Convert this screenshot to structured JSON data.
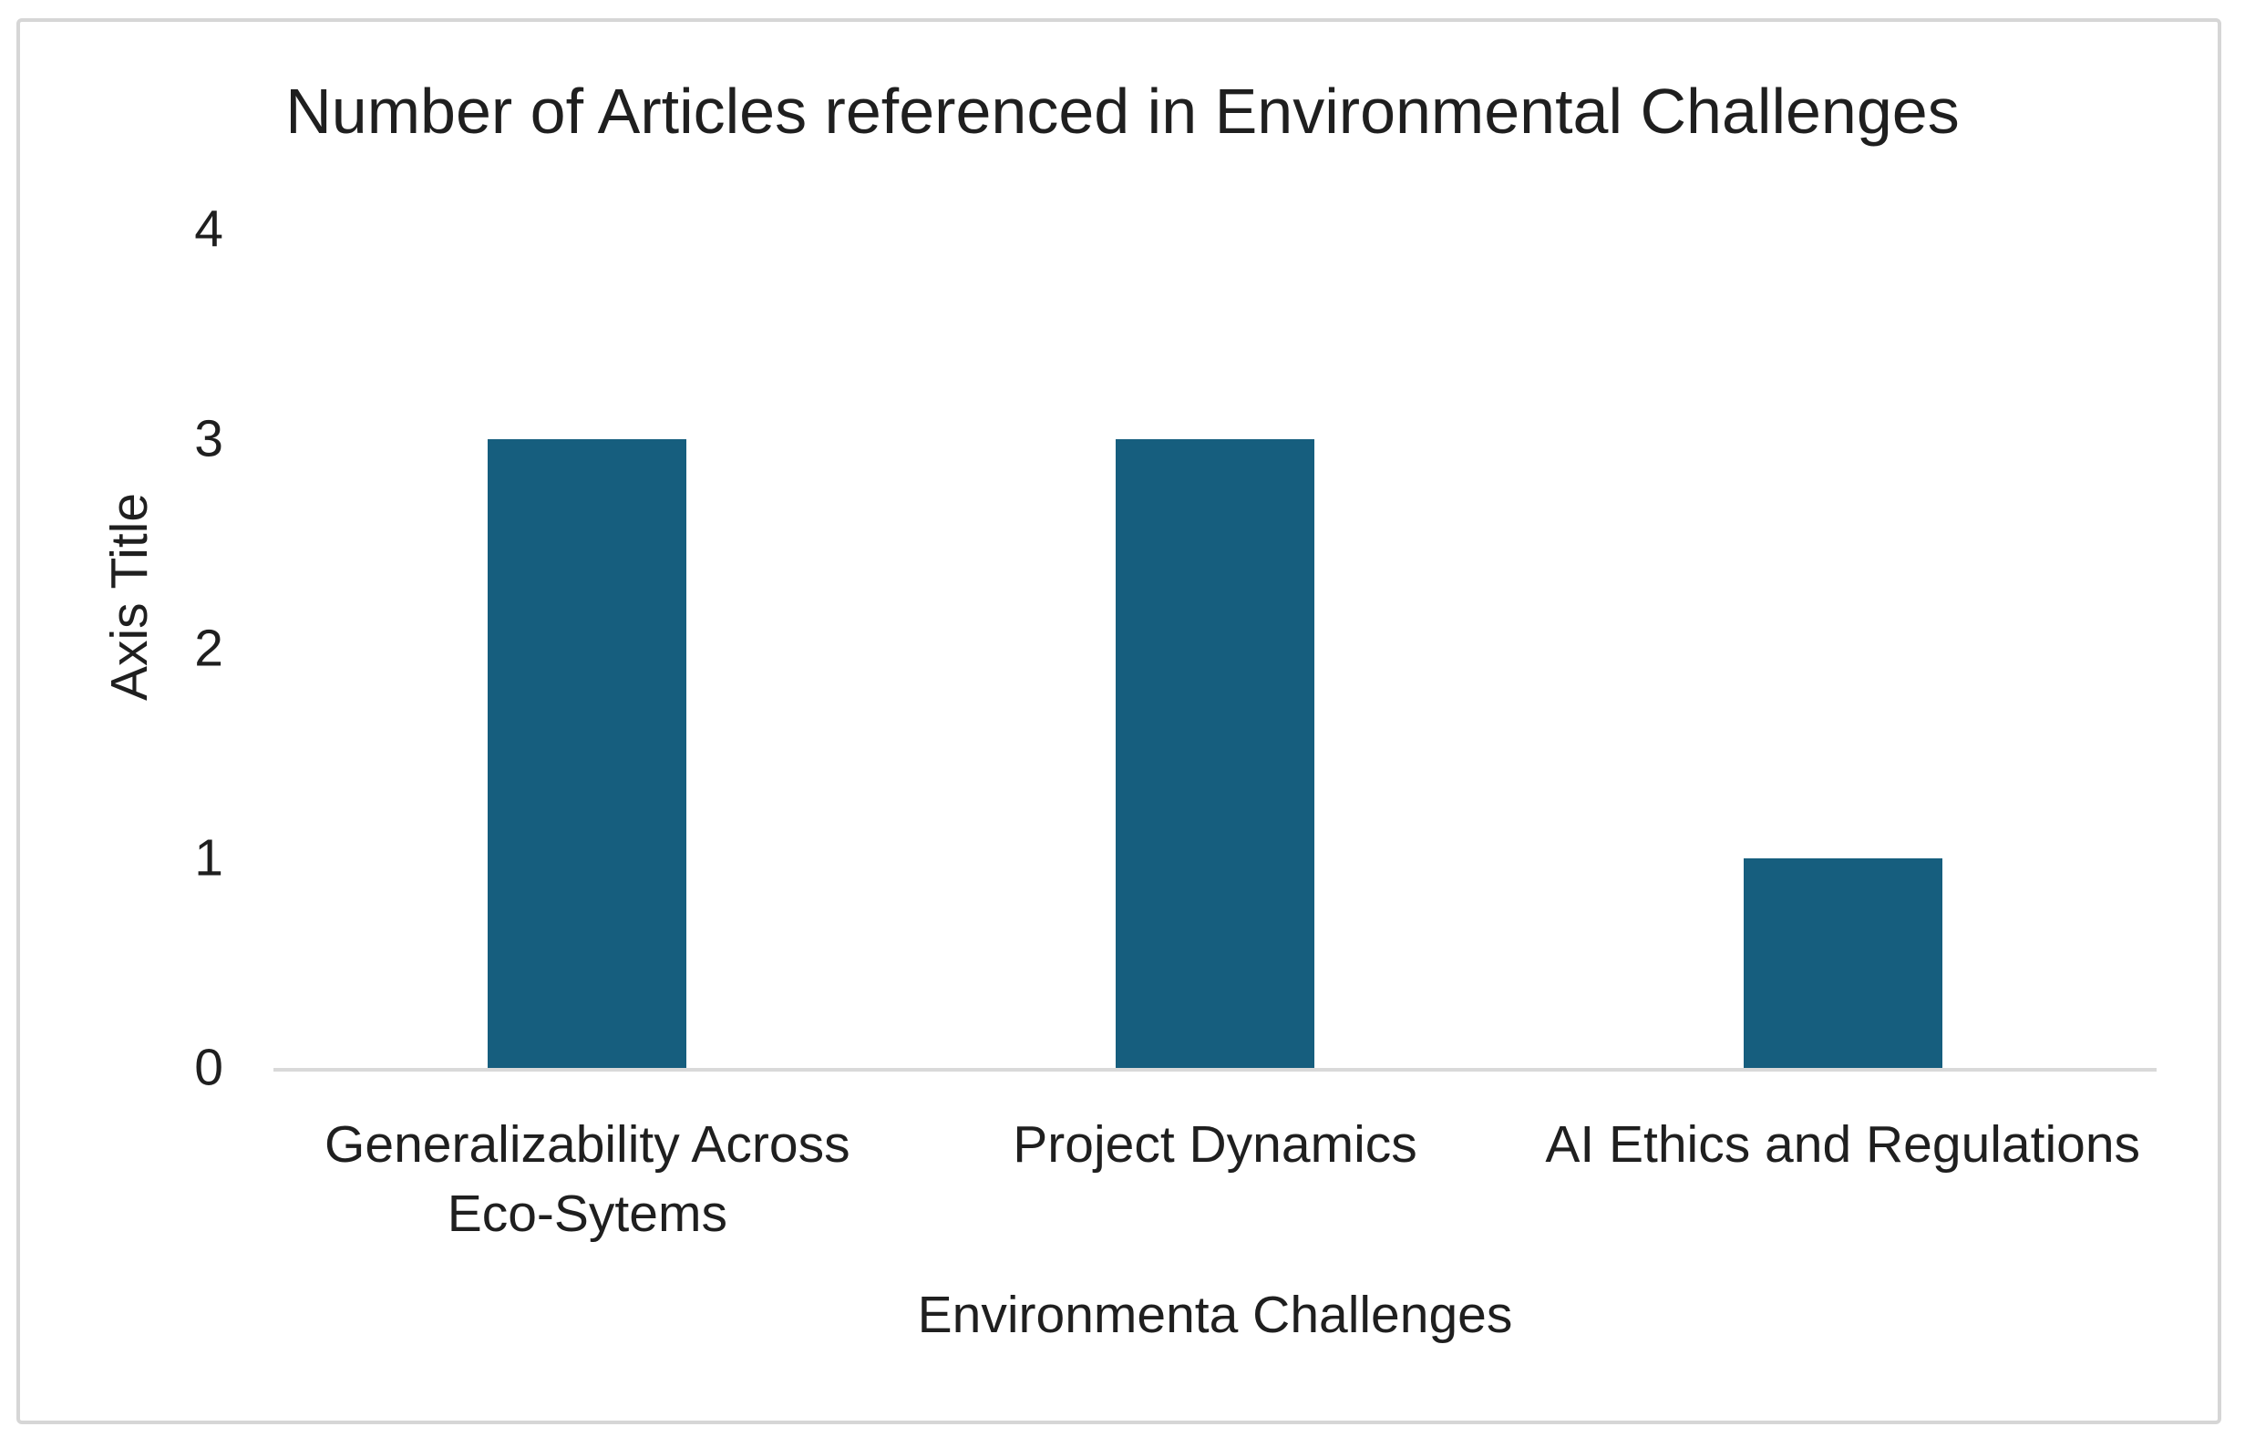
{
  "frame": {
    "border_color": "#d6d6d6",
    "background": "#ffffff"
  },
  "chart_data": {
    "type": "bar",
    "title": "Number of Articles referenced in Environmental Challenges",
    "categories": [
      "Generalizability Across\nEco-Sytems",
      "Project Dynamics",
      "AI Ethics and Regulations"
    ],
    "values": [
      3,
      3,
      1
    ],
    "xlabel": "Environmenta Challenges",
    "ylabel": "Axis Title",
    "ylim": [
      0,
      4
    ],
    "yticks": [
      0,
      1,
      2,
      3,
      4
    ],
    "bar_color": "#165e7e",
    "axis_line_color": "#d9d9d9",
    "text_color": "#1f1f1f",
    "grid": "off",
    "legend": "none"
  }
}
